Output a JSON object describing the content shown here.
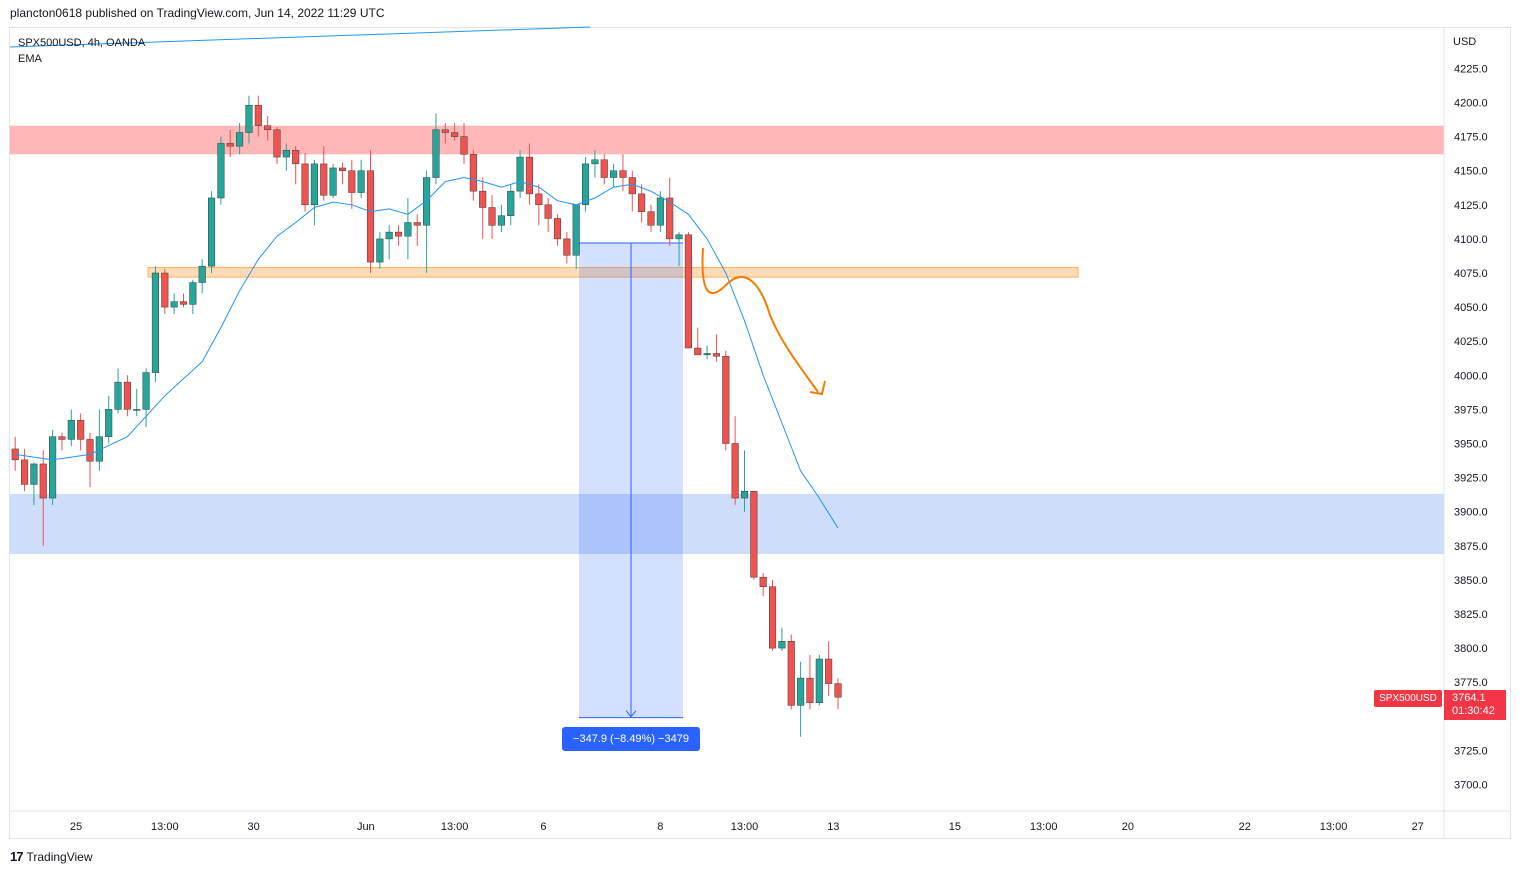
{
  "header": {
    "publisher": "plancton0618 published on TradingView.com, Jun 14, 2022 11:29 UTC"
  },
  "symbol": {
    "line1": "SPX500USD, 4h, OANDA",
    "line2": "EMA"
  },
  "footer": {
    "brand": "TradingView",
    "logo": "17"
  },
  "measure": {
    "label": "−347.9 (−8.49%) −3479"
  },
  "last_price": {
    "symbol": "SPX500USD",
    "price": "3764.1",
    "countdown": "01:30:42"
  },
  "colors": {
    "up": "#26a69a",
    "down": "#ef5350",
    "ema": "#2196f3",
    "measure": "#2962ff",
    "zone_red": "#ff7070",
    "zone_orange": "#ffb060",
    "zone_blue": "#5b8def",
    "arrow": "#f57c00"
  },
  "chart_data": {
    "type": "candlestick",
    "title": "SPX500USD, 4h, OANDA",
    "currency": "USD",
    "ylim": [
      3680,
      4250
    ],
    "y_ticks": [
      4225,
      4200,
      4175,
      4150,
      4125,
      4100,
      4075,
      4050,
      4025,
      4000,
      3975,
      3950,
      3925,
      3900,
      3875,
      3850,
      3825,
      3800,
      3775,
      3725,
      3700
    ],
    "y_tick_labels": [
      "4225.0",
      "4200.0",
      "4175.0",
      "4150.0",
      "4125.0",
      "4100.0",
      "4075.0",
      "4050.0",
      "4025.0",
      "4000.0",
      "3975.0",
      "3950.0",
      "3925.0",
      "3900.0",
      "3875.0",
      "3850.0",
      "3825.0",
      "3800.0",
      "3775.0",
      "3725.0",
      "3700.0"
    ],
    "x_labels": [
      {
        "bar": 6.5,
        "label": "25"
      },
      {
        "bar": 16,
        "label": "13:00"
      },
      {
        "bar": 25.5,
        "label": "30"
      },
      {
        "bar": 37.5,
        "label": "Jun"
      },
      {
        "bar": 47,
        "label": "13:00"
      },
      {
        "bar": 56.5,
        "label": "6"
      },
      {
        "bar": 69,
        "label": "8"
      },
      {
        "bar": 78,
        "label": "13:00"
      },
      {
        "bar": 87.5,
        "label": "13"
      },
      {
        "bar": 100.5,
        "label": "15"
      },
      {
        "bar": 110,
        "label": "13:00"
      },
      {
        "bar": 119,
        "label": "20"
      },
      {
        "bar": 131.5,
        "label": "22"
      },
      {
        "bar": 141,
        "label": "13:00"
      },
      {
        "bar": 150,
        "label": "27"
      }
    ],
    "candles": [
      [
        3946,
        3955,
        3930,
        3938
      ],
      [
        3938,
        3946,
        3915,
        3920
      ],
      [
        3920,
        3936,
        3905,
        3935
      ],
      [
        3935,
        3945,
        3875,
        3910
      ],
      [
        3910,
        3960,
        3905,
        3955
      ],
      [
        3955,
        3958,
        3945,
        3953
      ],
      [
        3953,
        3975,
        3948,
        3967
      ],
      [
        3967,
        3972,
        3945,
        3953
      ],
      [
        3953,
        3958,
        3918,
        3937
      ],
      [
        3937,
        3975,
        3930,
        3955
      ],
      [
        3955,
        3985,
        3950,
        3975
      ],
      [
        3975,
        4005,
        3972,
        3995
      ],
      [
        3995,
        4000,
        3970,
        3975
      ],
      [
        3975,
        3990,
        3970,
        3975
      ],
      [
        3975,
        4005,
        3962,
        4002
      ],
      [
        4002,
        4080,
        3995,
        4075
      ],
      [
        4075,
        4078,
        4045,
        4050
      ],
      [
        4050,
        4060,
        4045,
        4054
      ],
      [
        4054,
        4060,
        4050,
        4052
      ],
      [
        4052,
        4070,
        4045,
        4068
      ],
      [
        4068,
        4085,
        4060,
        4080
      ],
      [
        4080,
        4135,
        4075,
        4130
      ],
      [
        4130,
        4175,
        4125,
        4170
      ],
      [
        4170,
        4180,
        4160,
        4168
      ],
      [
        4168,
        4185,
        4162,
        4178
      ],
      [
        4178,
        4205,
        4170,
        4198
      ],
      [
        4198,
        4205,
        4175,
        4183
      ],
      [
        4183,
        4190,
        4172,
        4180
      ],
      [
        4180,
        4182,
        4155,
        4160
      ],
      [
        4160,
        4170,
        4150,
        4165
      ],
      [
        4165,
        4168,
        4140,
        4155
      ],
      [
        4155,
        4163,
        4120,
        4125
      ],
      [
        4125,
        4158,
        4110,
        4155
      ],
      [
        4155,
        4168,
        4128,
        4132
      ],
      [
        4132,
        4155,
        4130,
        4152
      ],
      [
        4152,
        4156,
        4140,
        4150
      ],
      [
        4150,
        4158,
        4122,
        4134
      ],
      [
        4134,
        4158,
        4130,
        4150
      ],
      [
        4150,
        4165,
        4075,
        4083
      ],
      [
        4083,
        4105,
        4078,
        4100
      ],
      [
        4100,
        4110,
        4085,
        4105
      ],
      [
        4105,
        4110,
        4095,
        4102
      ],
      [
        4102,
        4130,
        4085,
        4112
      ],
      [
        4112,
        4118,
        4095,
        4110
      ],
      [
        4110,
        4150,
        4075,
        4145
      ],
      [
        4145,
        4192,
        4140,
        4180
      ],
      [
        4180,
        4185,
        4170,
        4178
      ],
      [
        4178,
        4185,
        4172,
        4175
      ],
      [
        4175,
        4185,
        4155,
        4162
      ],
      [
        4162,
        4165,
        4128,
        4135
      ],
      [
        4135,
        4145,
        4100,
        4123
      ],
      [
        4123,
        4132,
        4100,
        4110
      ],
      [
        4110,
        4125,
        4105,
        4117
      ],
      [
        4117,
        4140,
        4110,
        4135
      ],
      [
        4135,
        4165,
        4130,
        4160
      ],
      [
        4160,
        4170,
        4125,
        4133
      ],
      [
        4133,
        4140,
        4110,
        4125
      ],
      [
        4125,
        4130,
        4105,
        4115
      ],
      [
        4115,
        4118,
        4095,
        4100
      ],
      [
        4100,
        4105,
        4082,
        4088
      ],
      [
        4088,
        4125,
        4078,
        4125
      ],
      [
        4125,
        4160,
        4120,
        4155
      ],
      [
        4155,
        4165,
        4145,
        4158
      ],
      [
        4158,
        4162,
        4140,
        4145
      ],
      [
        4145,
        4155,
        4138,
        4150
      ],
      [
        4150,
        4162,
        4135,
        4145
      ],
      [
        4145,
        4150,
        4120,
        4133
      ],
      [
        4133,
        4140,
        4112,
        4120
      ],
      [
        4120,
        4125,
        4105,
        4110
      ],
      [
        4110,
        4135,
        4105,
        4130
      ],
      [
        4130,
        4145,
        4095,
        4100
      ],
      [
        4100,
        4105,
        4080,
        4103
      ],
      [
        4103,
        4105,
        4020,
        4020
      ],
      [
        4020,
        4035,
        4015,
        4015
      ],
      [
        4015,
        4022,
        4012,
        4016
      ],
      [
        4016,
        4030,
        4010,
        4014
      ],
      [
        4014,
        4018,
        3945,
        3950
      ],
      [
        3950,
        3970,
        3905,
        3910
      ],
      [
        3910,
        3945,
        3900,
        3915
      ],
      [
        3915,
        3915,
        3850,
        3852
      ],
      [
        3852,
        3855,
        3838,
        3845
      ],
      [
        3845,
        3850,
        3798,
        3800
      ],
      [
        3800,
        3815,
        3798,
        3805
      ],
      [
        3805,
        3810,
        3755,
        3758
      ],
      [
        3758,
        3790,
        3735,
        3778
      ],
      [
        3778,
        3795,
        3755,
        3760
      ],
      [
        3760,
        3795,
        3758,
        3792
      ],
      [
        3792,
        3805,
        3765,
        3774
      ],
      [
        3774,
        3778,
        3755,
        3764
      ]
    ],
    "ema": [
      [
        0,
        3942
      ],
      [
        4,
        3938
      ],
      [
        8,
        3942
      ],
      [
        12,
        3955
      ],
      [
        16,
        3985
      ],
      [
        20,
        4010
      ],
      [
        22,
        4035
      ],
      [
        24,
        4062
      ],
      [
        26,
        4085
      ],
      [
        28,
        4102
      ],
      [
        30,
        4112
      ],
      [
        32,
        4123
      ],
      [
        34,
        4127
      ],
      [
        36,
        4125
      ],
      [
        38,
        4120
      ],
      [
        40,
        4122
      ],
      [
        42,
        4118
      ],
      [
        44,
        4128
      ],
      [
        46,
        4142
      ],
      [
        48,
        4145
      ],
      [
        50,
        4142
      ],
      [
        52,
        4138
      ],
      [
        54,
        4142
      ],
      [
        56,
        4138
      ],
      [
        58,
        4128
      ],
      [
        60,
        4125
      ],
      [
        62,
        4130
      ],
      [
        64,
        4138
      ],
      [
        66,
        4140
      ],
      [
        68,
        4135
      ],
      [
        70,
        4127
      ],
      [
        72,
        4118
      ],
      [
        74,
        4100
      ],
      [
        76,
        4075
      ],
      [
        78,
        4040
      ],
      [
        80,
        4000
      ],
      [
        82,
        3965
      ],
      [
        84,
        3930
      ],
      [
        86,
        3910
      ],
      [
        88,
        3888
      ]
    ],
    "zones": [
      {
        "name": "resistance",
        "from": 4162,
        "to": 4183
      },
      {
        "name": "pivot",
        "from": 4072,
        "to": 4079
      },
      {
        "name": "support",
        "from": 3869,
        "to": 3913
      }
    ],
    "measure": {
      "from": 4097,
      "to": 3749,
      "change": -347.9,
      "percent": -8.49,
      "ticks": -3479
    },
    "last_price": 3764.1
  }
}
